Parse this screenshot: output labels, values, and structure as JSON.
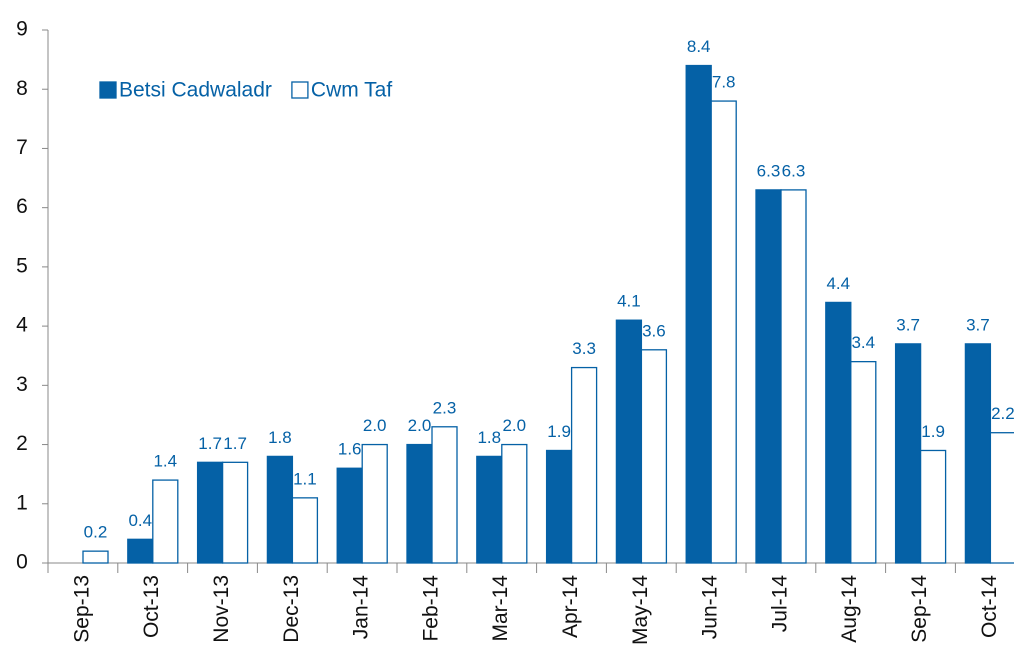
{
  "chart_data": {
    "type": "bar",
    "categories": [
      "Sep-13",
      "Oct-13",
      "Nov-13",
      "Dec-13",
      "Jan-14",
      "Feb-14",
      "Mar-14",
      "Apr-14",
      "May-14",
      "Jun-14",
      "Jul-14",
      "Aug-14",
      "Sep-14",
      "Oct-14"
    ],
    "series": [
      {
        "name": "Betsi Cadwaladr",
        "color": "#0561a6",
        "fill": "solid",
        "values": [
          null,
          0.4,
          1.7,
          1.8,
          1.6,
          2.0,
          1.8,
          1.9,
          4.1,
          8.4,
          6.3,
          4.4,
          3.7,
          3.7
        ],
        "value_labels": [
          null,
          "0.4",
          "1.7",
          "1.8",
          "1.6",
          "2.0",
          "1.8",
          "1.9",
          "4.1",
          "8.4",
          "6.3",
          "4.4",
          "3.7",
          "3.7"
        ]
      },
      {
        "name": "Cwm Taf",
        "color": "#0561a6",
        "fill": "hollow",
        "values": [
          0.2,
          1.4,
          1.7,
          1.1,
          2.0,
          2.3,
          2.0,
          3.3,
          3.6,
          7.8,
          6.3,
          3.4,
          1.9,
          2.2
        ],
        "value_labels": [
          "0.2",
          "1.4",
          "1.7",
          "1.1",
          "2.0",
          "2.3",
          "2.0",
          "3.3",
          "3.6",
          "7.8",
          "6.3",
          "3.4",
          "1.9",
          "2.2"
        ]
      }
    ],
    "ylim": [
      0,
      9
    ],
    "yticks": [
      0,
      1,
      2,
      3,
      4,
      5,
      6,
      7,
      8,
      9
    ],
    "grid": false,
    "legend": "upper left"
  }
}
